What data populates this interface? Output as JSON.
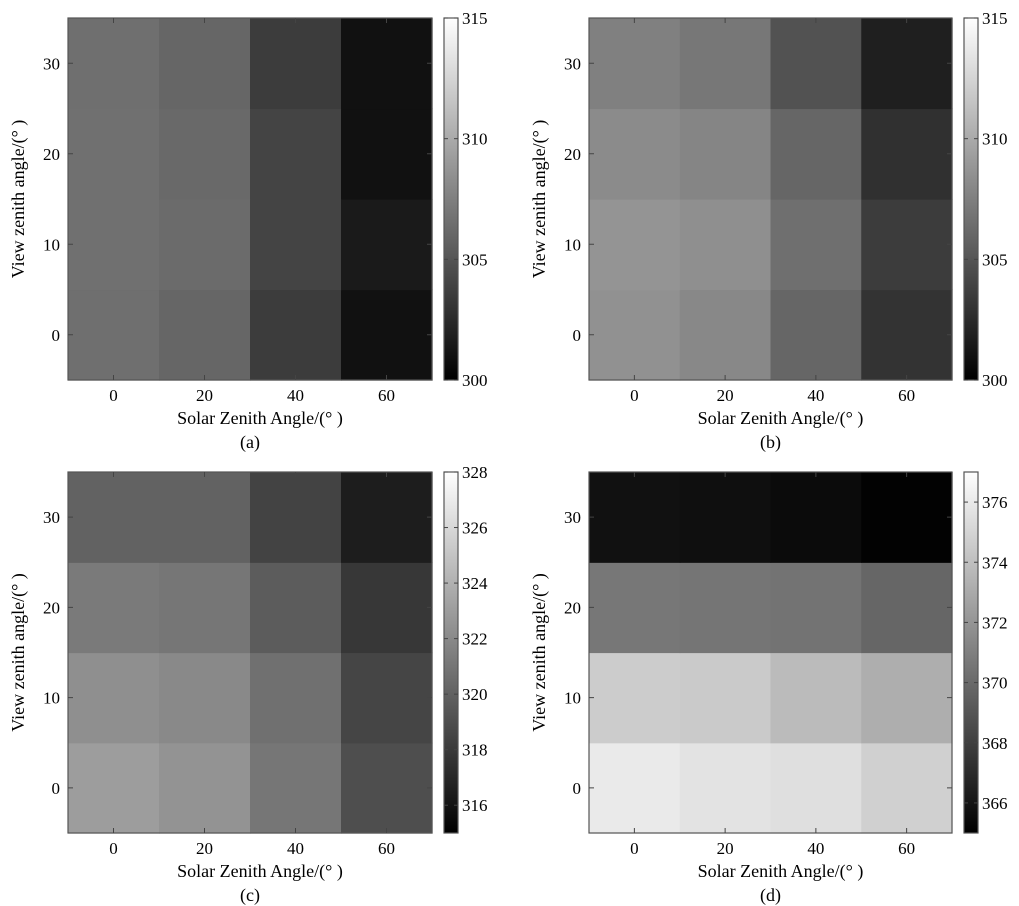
{
  "chart_data": [
    {
      "type": "heatmap",
      "panel_label": "(a)",
      "x": [
        0,
        20,
        40,
        60
      ],
      "y": [
        0,
        10,
        20,
        30
      ],
      "xlabel": "Solar Zenith Angle/(° )",
      "ylabel": "View zenith angle/(° )",
      "xticks": [
        0,
        20,
        40,
        60
      ],
      "yticks": [
        0,
        10,
        20,
        30
      ],
      "xlim": [
        -10,
        70
      ],
      "ylim": [
        -5,
        35
      ],
      "colorbar": {
        "min": 300,
        "max": 315,
        "ticks": [
          300,
          305,
          310,
          315
        ]
      },
      "colormap": "gray",
      "values": [
        [
          306.5,
          306.0,
          303.5,
          301.0
        ],
        [
          306.6,
          306.3,
          304.0,
          301.5
        ],
        [
          306.6,
          306.2,
          304.0,
          301.0
        ],
        [
          306.5,
          306.0,
          303.5,
          301.0
        ]
      ]
    },
    {
      "type": "heatmap",
      "panel_label": "(b)",
      "x": [
        0,
        20,
        40,
        60
      ],
      "y": [
        0,
        10,
        20,
        30
      ],
      "xlabel": "Solar Zenith Angle/(° )",
      "ylabel": "View zenith angle/(° )",
      "xticks": [
        0,
        20,
        40,
        60
      ],
      "yticks": [
        0,
        10,
        20,
        30
      ],
      "xlim": [
        -10,
        70
      ],
      "ylim": [
        -5,
        35
      ],
      "colorbar": {
        "min": 300,
        "max": 315,
        "ticks": [
          300,
          305,
          310,
          315
        ]
      },
      "colormap": "gray",
      "values": [
        [
          308.5,
          308.0,
          306.0,
          303.0
        ],
        [
          308.7,
          308.4,
          306.5,
          303.5
        ],
        [
          308.2,
          307.8,
          306.0,
          302.8
        ],
        [
          307.5,
          307.0,
          304.8,
          301.8
        ]
      ]
    },
    {
      "type": "heatmap",
      "panel_label": "(c)",
      "x": [
        0,
        20,
        40,
        60
      ],
      "y": [
        0,
        10,
        20,
        30
      ],
      "xlabel": "Solar Zenith Angle/(° )",
      "ylabel": "View zenith angle/(° )",
      "xticks": [
        0,
        20,
        40,
        60
      ],
      "yticks": [
        0,
        10,
        20,
        30
      ],
      "xlim": [
        -10,
        70
      ],
      "ylim": [
        -5,
        35
      ],
      "colorbar": {
        "min": 315,
        "max": 328,
        "ticks": [
          316,
          318,
          320,
          322,
          324,
          326,
          328
        ]
      },
      "colormap": "gray",
      "values": [
        [
          323.0,
          322.5,
          321.0,
          319.0
        ],
        [
          322.3,
          322.0,
          320.7,
          318.5
        ],
        [
          321.2,
          321.0,
          319.7,
          317.8
        ],
        [
          320.0,
          320.0,
          318.4,
          316.5
        ]
      ]
    },
    {
      "type": "heatmap",
      "panel_label": "(d)",
      "x": [
        0,
        20,
        40,
        60
      ],
      "y": [
        0,
        10,
        20,
        30
      ],
      "xlabel": "Solar Zenith Angle/(° )",
      "ylabel": "View zenith angle/(° )",
      "xticks": [
        0,
        20,
        40,
        60
      ],
      "yticks": [
        0,
        10,
        20,
        30
      ],
      "xlim": [
        -10,
        70
      ],
      "ylim": [
        -5,
        35
      ],
      "colorbar": {
        "min": 365,
        "max": 377,
        "ticks": [
          366,
          368,
          370,
          372,
          374,
          376
        ]
      },
      "colormap": "gray",
      "values": [
        [
          376.0,
          375.7,
          375.5,
          374.8
        ],
        [
          374.6,
          374.5,
          373.8,
          373.2
        ],
        [
          370.6,
          370.5,
          370.4,
          369.8
        ],
        [
          365.8,
          365.7,
          365.5,
          365.1
        ]
      ]
    }
  ]
}
